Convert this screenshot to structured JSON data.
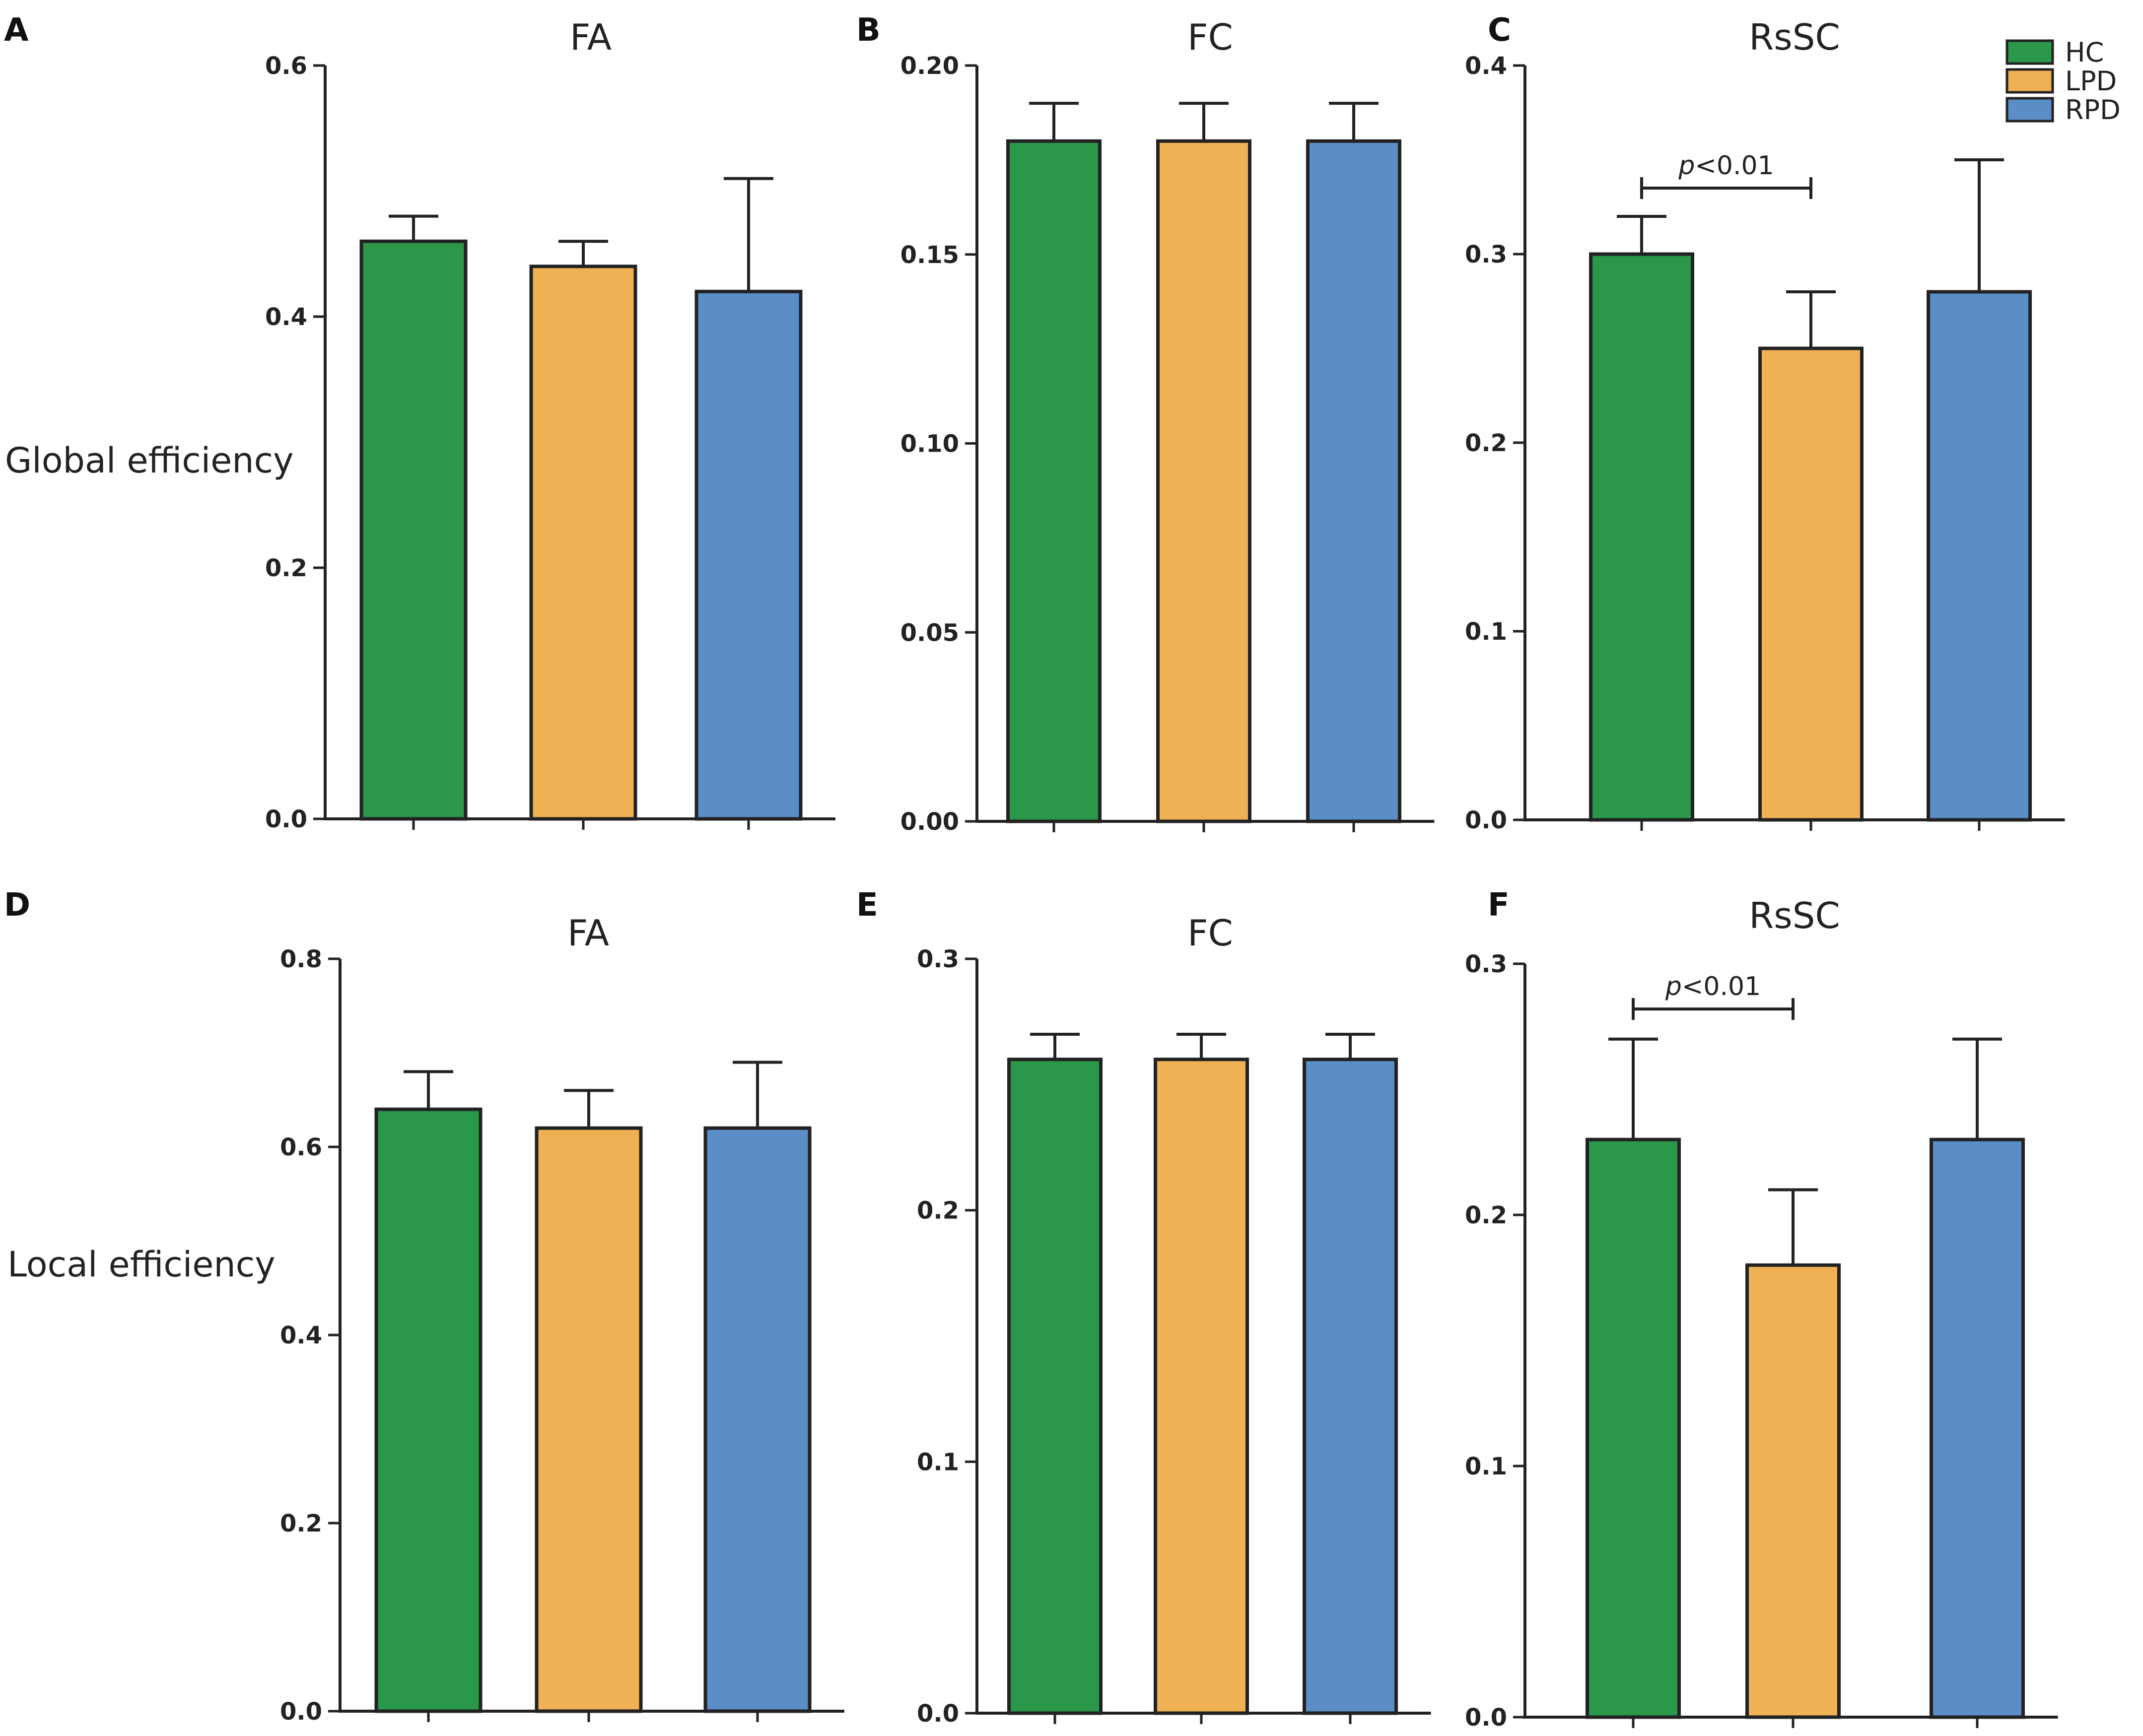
{
  "colors": {
    "HC": "#2a9749",
    "LPD": "#f0b054",
    "RPD": "#5b8dc6",
    "axis": "#222222"
  },
  "row_labels": [
    "Global efficiency",
    "Local efficiency"
  ],
  "legend": [
    {
      "label": "HC",
      "color": "#2a9749"
    },
    {
      "label": "LPD",
      "color": "#f0b054"
    },
    {
      "label": "RPD",
      "color": "#5b8dc6"
    }
  ],
  "chart_data": [
    {
      "type": "bar",
      "panel": "A",
      "title": "FA",
      "categories": [
        "HC",
        "LPD",
        "RPD"
      ],
      "values": [
        0.46,
        0.44,
        0.42
      ],
      "errors": [
        0.02,
        0.02,
        0.09
      ],
      "ylim": [
        0,
        0.6
      ],
      "yticks": [
        "0.0",
        "0.2",
        "0.4",
        "0.6"
      ],
      "ytick_values": [
        0,
        0.2,
        0.4,
        0.6
      ],
      "xlabel": "",
      "ylabel": "Global efficiency",
      "annotation": null
    },
    {
      "type": "bar",
      "panel": "B",
      "title": "FC",
      "categories": [
        "HC",
        "LPD",
        "RPD"
      ],
      "values": [
        0.18,
        0.18,
        0.18
      ],
      "errors": [
        0.01,
        0.01,
        0.01
      ],
      "ylim": [
        0,
        0.2
      ],
      "yticks": [
        "0.00",
        "0.05",
        "0.10",
        "0.15",
        "0.20"
      ],
      "ytick_values": [
        0,
        0.05,
        0.1,
        0.15,
        0.2
      ],
      "xlabel": "",
      "ylabel": "",
      "annotation": null
    },
    {
      "type": "bar",
      "panel": "C",
      "title": "RsSC",
      "categories": [
        "HC",
        "LPD",
        "RPD"
      ],
      "values": [
        0.3,
        0.25,
        0.28
      ],
      "errors": [
        0.02,
        0.03,
        0.07
      ],
      "ylim": [
        0,
        0.4
      ],
      "yticks": [
        "0.0",
        "0.1",
        "0.2",
        "0.3",
        "0.4"
      ],
      "ytick_values": [
        0,
        0.1,
        0.2,
        0.3,
        0.4
      ],
      "xlabel": "",
      "ylabel": "",
      "annotation": {
        "p": "p",
        "rest": "<0.01",
        "from": 0,
        "to": 1,
        "level": 0.335
      }
    },
    {
      "type": "bar",
      "panel": "D",
      "title": "FA",
      "categories": [
        "HC",
        "LPD",
        "RPD"
      ],
      "values": [
        0.64,
        0.62,
        0.62
      ],
      "errors": [
        0.04,
        0.04,
        0.07
      ],
      "ylim": [
        0,
        0.8
      ],
      "yticks": [
        "0.0",
        "0.2",
        "0.4",
        "0.6",
        "0.8"
      ],
      "ytick_values": [
        0,
        0.2,
        0.4,
        0.6,
        0.8
      ],
      "xlabel": "",
      "ylabel": "Local efficiency",
      "annotation": null
    },
    {
      "type": "bar",
      "panel": "E",
      "title": "FC",
      "categories": [
        "HC",
        "LPD",
        "RPD"
      ],
      "values": [
        0.26,
        0.26,
        0.26
      ],
      "errors": [
        0.01,
        0.01,
        0.01
      ],
      "ylim": [
        0,
        0.3
      ],
      "yticks": [
        "0.0",
        "0.1",
        "0.2",
        "0.3"
      ],
      "ytick_values": [
        0,
        0.1,
        0.2,
        0.3
      ],
      "xlabel": "",
      "ylabel": "",
      "annotation": null
    },
    {
      "type": "bar",
      "panel": "F",
      "title": "RsSC",
      "categories": [
        "HC",
        "LPD",
        "RPD"
      ],
      "values": [
        0.23,
        0.18,
        0.23
      ],
      "errors": [
        0.04,
        0.03,
        0.04
      ],
      "ylim": [
        0,
        0.3
      ],
      "yticks": [
        "0.0",
        "0.1",
        "0.2",
        "0.3"
      ],
      "ytick_values": [
        0,
        0.1,
        0.2,
        0.3
      ],
      "xlabel": "",
      "ylabel": "",
      "annotation": {
        "p": "p",
        "rest": "<0.01",
        "from": 0,
        "to": 1,
        "level": 0.282
      }
    }
  ]
}
